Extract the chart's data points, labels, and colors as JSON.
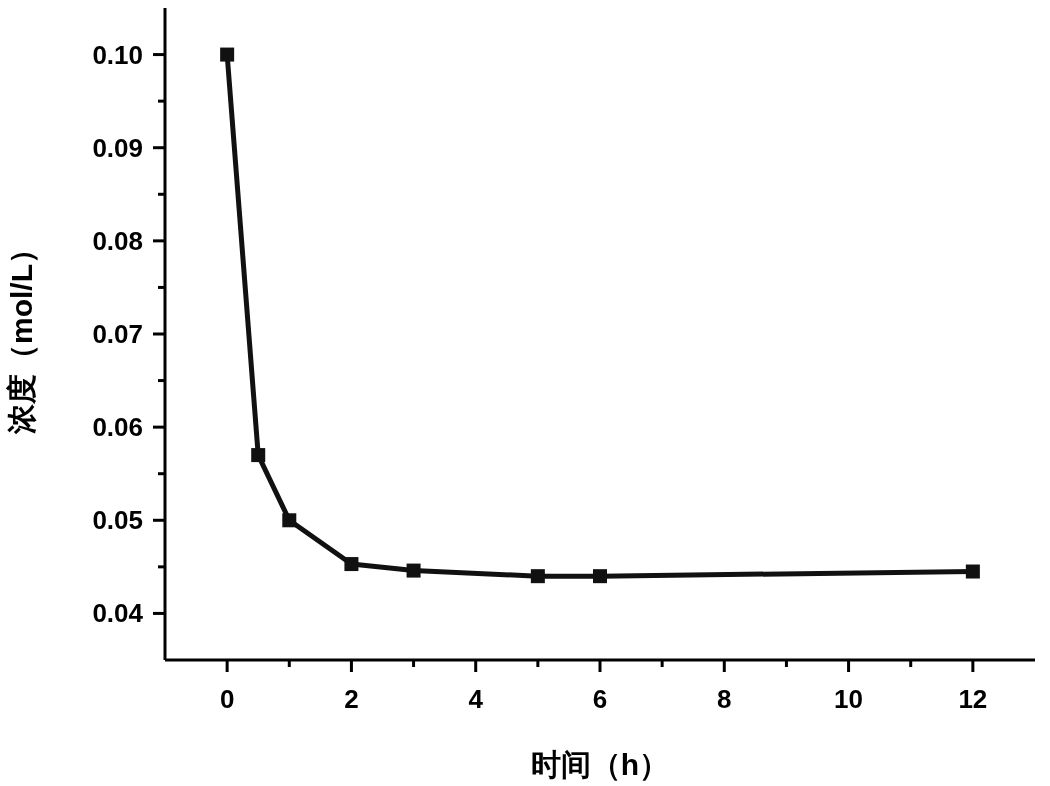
{
  "chart_data": {
    "type": "line",
    "xlabel": "时间（h）",
    "ylabel": "浓度（mol/L）",
    "x": [
      0,
      0.5,
      1,
      2,
      3,
      5,
      6,
      12
    ],
    "values": [
      0.1,
      0.057,
      0.05,
      0.0453,
      0.0446,
      0.044,
      0.044,
      0.0445
    ],
    "color": "#111111",
    "marker": "square",
    "line_style": "solid",
    "grid": false,
    "xlim": [
      -1,
      13
    ],
    "xticks": [
      0,
      {
        "value": 1,
        "label": null
      },
      2,
      {
        "value": 3,
        "label": null
      },
      4,
      {
        "value": 5,
        "label": null
      },
      6,
      {
        "value": 7,
        "label": null
      },
      8,
      {
        "value": 9,
        "label": null
      },
      10,
      {
        "value": 11,
        "label": null
      },
      12
    ],
    "ylim": [
      0.035,
      0.105
    ],
    "yticks": [
      {
        "value": 0.04,
        "label": "0.04"
      },
      {
        "value": 0.045,
        "label": null
      },
      {
        "value": 0.05,
        "label": "0.05"
      },
      {
        "value": 0.055,
        "label": null
      },
      {
        "value": 0.06,
        "label": "0.06"
      },
      {
        "value": 0.065,
        "label": null
      },
      {
        "value": 0.07,
        "label": "0.07"
      },
      {
        "value": 0.075,
        "label": null
      },
      {
        "value": 0.08,
        "label": "0.08"
      },
      {
        "value": 0.085,
        "label": null
      },
      {
        "value": 0.09,
        "label": "0.09"
      },
      {
        "value": 0.095,
        "label": null
      },
      {
        "value": 0.1,
        "label": "0.10"
      }
    ]
  }
}
